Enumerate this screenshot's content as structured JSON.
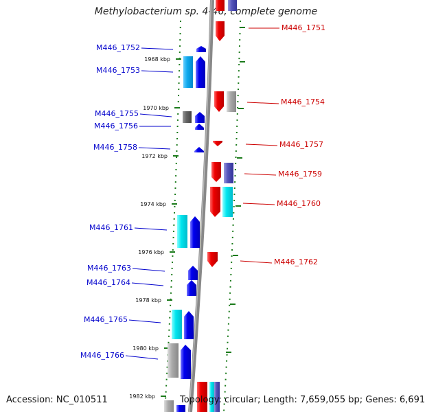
{
  "title": "Methylobacterium sp. 4-46, complete genome",
  "footer": {
    "accession": "Accession: NC_010511",
    "topology": "Topology: circular;",
    "length": "Length: 7,659,055 bp;",
    "genes": "Genes: 6,691"
  },
  "colors": {
    "forward_gene": "#0000ee",
    "reverse_gene": "#ee0000",
    "tick": "#1a7a1a",
    "backbone": "#888888",
    "left_label": "#0000cc",
    "right_label": "#cc0000"
  },
  "scale_labels": [
    "1968 kbp",
    "1970 kbp",
    "1972 kbp",
    "1974 kbp",
    "1976 kbp",
    "1978 kbp",
    "1980 kbp",
    "1982 kbp"
  ],
  "left_genes": [
    "M446_1752",
    "M446_1753",
    "M446_1755",
    "M446_1756",
    "M446_1758",
    "M446_1761",
    "M446_1763",
    "M446_1764",
    "M446_1765",
    "M446_1766"
  ],
  "right_genes": [
    "M446_1751",
    "M446_1754",
    "M446_1757",
    "M446_1759",
    "M446_1760",
    "M446_1762"
  ]
}
